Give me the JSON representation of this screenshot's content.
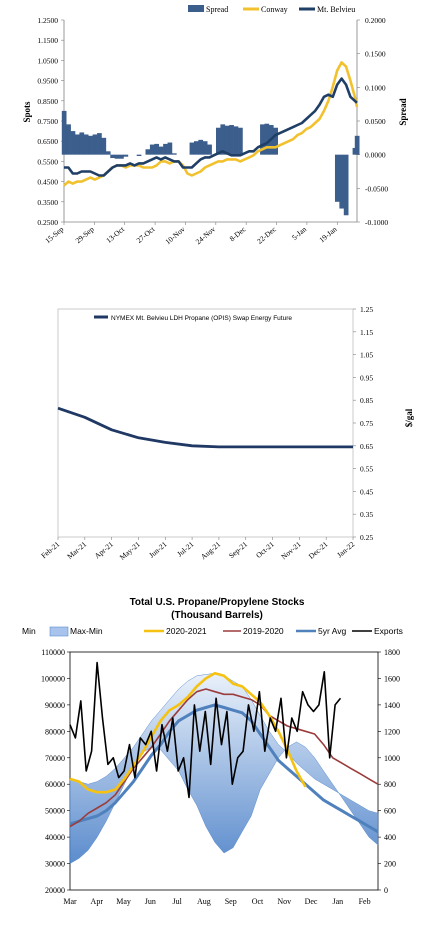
{
  "chart_data": [
    {
      "type": "line",
      "title": "",
      "ylabel_left": "Spots",
      "ylabel_right": "Spread",
      "legend": [
        "Spread",
        "Conway",
        "Mt. Belvieu"
      ],
      "legend_placement": "top-right",
      "colors": {
        "spread": "#3b5e8c",
        "conway": "#f2c12e",
        "belvieu": "#1f3f66"
      },
      "ylim_left": [
        0.25,
        1.25
      ],
      "ylim_right": [
        -0.1,
        0.2
      ],
      "y_ticks_left": [
        "1.2500",
        "1.1500",
        "1.0500",
        "0.9500",
        "0.8500",
        "0.7500",
        "0.6500",
        "0.5500",
        "0.4500",
        "0.3500",
        "0.2500"
      ],
      "y_ticks_right": [
        "0.2000",
        "0.1500",
        "0.1000",
        "0.0500",
        "0.0000",
        "-0.0500",
        "-0.1000"
      ],
      "x_ticks": [
        "15-Sep",
        "29-Sep",
        "13-Oct",
        "27-Oct",
        "10-Nov",
        "24-Nov",
        "8-Dec",
        "22-Dec",
        "5-Jan",
        "19-Jan"
      ],
      "series": [
        {
          "name": "Conway",
          "x": [
            0,
            2,
            4,
            6,
            8,
            10,
            12,
            14,
            16,
            18,
            20,
            22,
            24,
            26,
            28,
            30,
            32,
            34,
            36,
            38,
            40,
            42,
            44,
            46,
            48,
            50,
            52,
            54,
            56,
            58,
            60,
            62,
            64,
            66,
            68,
            70,
            72,
            74,
            76,
            78,
            80,
            82,
            84,
            86,
            88,
            90,
            92,
            94,
            96,
            98,
            100,
            102,
            104,
            106,
            108,
            110,
            112,
            114,
            116,
            118,
            120,
            122,
            124,
            126,
            128,
            130,
            132,
            133
          ],
          "values": [
            0.43,
            0.45,
            0.44,
            0.45,
            0.45,
            0.46,
            0.47,
            0.46,
            0.47,
            0.48,
            0.5,
            0.52,
            0.53,
            0.53,
            0.52,
            0.53,
            0.53,
            0.53,
            0.52,
            0.52,
            0.52,
            0.53,
            0.55,
            0.55,
            0.54,
            0.55,
            0.55,
            0.53,
            0.49,
            0.48,
            0.49,
            0.5,
            0.52,
            0.53,
            0.54,
            0.55,
            0.55,
            0.56,
            0.56,
            0.56,
            0.55,
            0.56,
            0.57,
            0.58,
            0.6,
            0.61,
            0.62,
            0.62,
            0.62,
            0.63,
            0.64,
            0.65,
            0.66,
            0.68,
            0.69,
            0.71,
            0.72,
            0.74,
            0.76,
            0.8,
            0.85,
            0.92,
            1.0,
            1.04,
            1.02,
            0.95,
            0.87,
            0.82
          ]
        },
        {
          "name": "Mt. Belvieu",
          "x": [
            0,
            2,
            4,
            6,
            8,
            10,
            12,
            14,
            16,
            18,
            20,
            22,
            24,
            26,
            28,
            30,
            32,
            34,
            36,
            38,
            40,
            42,
            44,
            46,
            48,
            50,
            52,
            54,
            56,
            58,
            60,
            62,
            64,
            66,
            68,
            70,
            72,
            74,
            76,
            78,
            80,
            82,
            84,
            86,
            88,
            90,
            92,
            94,
            96,
            98,
            100,
            102,
            104,
            106,
            108,
            110,
            112,
            114,
            116,
            118,
            120,
            122,
            124,
            126,
            128,
            130,
            132,
            133
          ],
          "values": [
            0.52,
            0.52,
            0.49,
            0.49,
            0.5,
            0.5,
            0.5,
            0.49,
            0.48,
            0.48,
            0.5,
            0.52,
            0.53,
            0.53,
            0.53,
            0.54,
            0.53,
            0.54,
            0.54,
            0.55,
            0.56,
            0.57,
            0.56,
            0.57,
            0.56,
            0.55,
            0.55,
            0.52,
            0.52,
            0.52,
            0.54,
            0.56,
            0.57,
            0.57,
            0.58,
            0.59,
            0.6,
            0.59,
            0.58,
            0.58,
            0.58,
            0.59,
            0.6,
            0.6,
            0.62,
            0.63,
            0.64,
            0.66,
            0.68,
            0.69,
            0.7,
            0.71,
            0.72,
            0.73,
            0.74,
            0.76,
            0.78,
            0.8,
            0.83,
            0.87,
            0.88,
            0.87,
            0.93,
            0.96,
            0.93,
            0.87,
            0.85,
            0.84
          ]
        },
        {
          "name": "Spread",
          "x": [
            0,
            2,
            4,
            6,
            8,
            10,
            12,
            14,
            16,
            18,
            20,
            22,
            24,
            26,
            28,
            30,
            32,
            34,
            36,
            38,
            40,
            42,
            44,
            46,
            48,
            50,
            52,
            54,
            56,
            58,
            60,
            62,
            64,
            66,
            68,
            70,
            72,
            74,
            76,
            78,
            80,
            82,
            84,
            86,
            88,
            90,
            92,
            94,
            96,
            98,
            100,
            102,
            104,
            106,
            108,
            110,
            112,
            114,
            116,
            118,
            120,
            122,
            124,
            126,
            128,
            130,
            132,
            133
          ],
          "values": [
            0.065,
            0.045,
            0.035,
            0.03,
            0.033,
            0.03,
            0.028,
            0.03,
            0.032,
            0.025,
            0.005,
            -0.005,
            -0.006,
            -0.006,
            -0.003,
            0.0,
            0.0,
            -0.002,
            0.0,
            0.008,
            0.015,
            0.016,
            0.012,
            0.016,
            0.018,
            0.002,
            0.0,
            0.0,
            0.0,
            0.018,
            0.02,
            0.022,
            0.02,
            0.015,
            0.0,
            0.04,
            0.045,
            0.043,
            0.044,
            0.042,
            0.04,
            0.0,
            0.0,
            0.0,
            0.0,
            0.045,
            0.046,
            0.044,
            0.04,
            0.0,
            0.0,
            0.0,
            0.0,
            0.0,
            0.0,
            0.0,
            0.0,
            0.0,
            0.0,
            0.0,
            0.0,
            0.0,
            -0.07,
            -0.08,
            -0.09,
            0.0,
            0.01,
            0.028
          ]
        }
      ]
    },
    {
      "type": "line",
      "title": "",
      "ylabel_right": "$/gal",
      "ylim": [
        0.25,
        1.25
      ],
      "y_ticks": [
        "1.25",
        "1.15",
        "1.05",
        "0.95",
        "0.85",
        "0.75",
        "0.65",
        "0.55",
        "0.45",
        "0.35",
        "0.25"
      ],
      "x_ticks": [
        "Feb-21",
        "Mar-21",
        "Apr-21",
        "May-21",
        "Jun-21",
        "Jul-21",
        "Aug-21",
        "Sep-21",
        "Oct-21",
        "Nov-21",
        "Dec-21",
        "Jan-22"
      ],
      "legend_placement": "top-center",
      "series": [
        {
          "name": "NYMEX Mt. Belvieu LDH Propane (OPIS) Swap Energy Future",
          "values": [
            0.815,
            0.775,
            0.72,
            0.685,
            0.665,
            0.65,
            0.645,
            0.645,
            0.645,
            0.645,
            0.645,
            0.645
          ]
        }
      ],
      "colors": {
        "line": "#1f3864"
      }
    },
    {
      "type": "line",
      "title": "Total U.S. Propane/Propylene Stocks",
      "subtitle": "(Thousand Barrels)",
      "legend": [
        "Min",
        "Max-Min",
        "2020-2021",
        "2019-2020",
        "5yr Avg",
        "Exports"
      ],
      "ylim_left": [
        20000,
        110000
      ],
      "ylim_right": [
        0,
        1800
      ],
      "y_ticks_left": [
        "110000",
        "100000",
        "90000",
        "80000",
        "70000",
        "60000",
        "50000",
        "40000",
        "30000",
        "20000"
      ],
      "y_ticks_right": [
        "1800",
        "1600",
        "1400",
        "1200",
        "1000",
        "800",
        "600",
        "400",
        "200",
        "0"
      ],
      "x_ticks": [
        "Mar",
        "Apr",
        "May",
        "Jun",
        "Jul",
        "Aug",
        "Sep",
        "Oct",
        "Nov",
        "Dec",
        "Jan",
        "Feb"
      ],
      "colors": {
        "band": "#5b8fd0",
        "y2021": "#f5c211",
        "y2020": "#9b3b3b",
        "avg": "#4f81bd",
        "exports": "#000000"
      },
      "band_min": [
        30000,
        32000,
        35000,
        40000,
        46000,
        53000,
        60000,
        67000,
        72000,
        74000,
        73000,
        69000,
        65000,
        58000,
        52000,
        44000,
        38000,
        34000,
        36000,
        42000,
        48000,
        58000,
        64000,
        70000,
        74000,
        76000,
        74000,
        70000,
        65000,
        60000,
        55000,
        50000,
        45000,
        40000,
        37000
      ],
      "band_max": [
        62000,
        61000,
        60000,
        61000,
        63000,
        66000,
        70000,
        74000,
        79000,
        84000,
        88000,
        92000,
        96000,
        99000,
        101000,
        101500,
        102000,
        101000,
        99000,
        97000,
        92000,
        86000,
        80000,
        75000,
        72000,
        68000,
        65000,
        62000,
        60000,
        58000,
        56000,
        54000,
        52000,
        50000,
        49000
      ],
      "series": [
        {
          "name": "2020-2021",
          "values": [
            62000,
            61000,
            58000,
            57000,
            57000,
            58000,
            62000,
            67000,
            72000,
            78000,
            84000,
            88000,
            90000,
            93000,
            97000,
            100000,
            102000,
            101000,
            98000,
            97000,
            94000,
            91000,
            86000,
            80000,
            73000,
            65000,
            59000
          ]
        },
        {
          "name": "2019-2020",
          "values": [
            44000,
            46000,
            49000,
            51000,
            53000,
            56000,
            61000,
            66000,
            70000,
            74000,
            79000,
            84000,
            88000,
            92000,
            95000,
            96000,
            95000,
            94000,
            94000,
            93000,
            92000,
            90000,
            86000,
            84000,
            82000,
            81000,
            80000,
            79000,
            75000,
            70000,
            68000,
            66000,
            64000,
            62000,
            60000
          ]
        },
        {
          "name": "5yr Avg",
          "values": [
            45000,
            46000,
            47000,
            48000,
            50000,
            53000,
            57000,
            61000,
            66000,
            71000,
            75000,
            80000,
            84000,
            86000,
            88000,
            89000,
            90000,
            89000,
            88000,
            87000,
            84000,
            79000,
            74000,
            69000,
            66000,
            63000,
            60000,
            57000,
            54000,
            52000,
            50000,
            48000,
            46000,
            44000,
            42000
          ]
        },
        {
          "name": "Exports",
          "values": [
            1250,
            1150,
            1430,
            900,
            1050,
            1720,
            1300,
            950,
            1000,
            850,
            900,
            1100,
            850,
            1150,
            1100,
            1200,
            900,
            1250,
            1050,
            1300,
            900,
            1000,
            700,
            1400,
            1050,
            1350,
            950,
            1450,
            1100,
            1350,
            800,
            1000,
            1050,
            1400,
            1200,
            1500,
            1050,
            1300,
            1200,
            1450,
            1000,
            1300,
            1200,
            1500,
            1400,
            1350,
            1400,
            1650,
            1000,
            1400,
            1450
          ]
        }
      ]
    }
  ]
}
